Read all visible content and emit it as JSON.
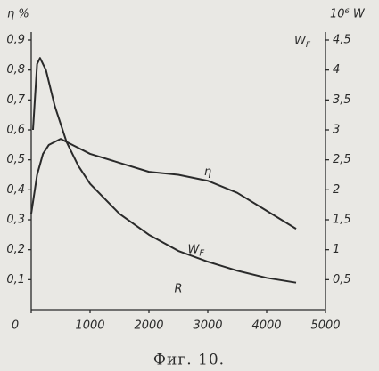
{
  "chart_data": {
    "type": "line",
    "caption": "Фиг. 10.",
    "y_label": "η %",
    "y2_label": "10⁶ W",
    "y2_series_label": {
      "text": "W",
      "sub": "F"
    },
    "xlim": [
      0,
      5000
    ],
    "xticks": [
      0,
      1000,
      2000,
      3000,
      4000,
      5000
    ],
    "ylim": [
      0,
      0.9
    ],
    "yticks": [
      {
        "value": 0.1,
        "label": "0,1"
      },
      {
        "value": 0.2,
        "label": "0,2"
      },
      {
        "value": 0.3,
        "label": "0,3"
      },
      {
        "value": 0.4,
        "label": "0,4"
      },
      {
        "value": 0.5,
        "label": "0,5"
      },
      {
        "value": 0.6,
        "label": "0,6"
      },
      {
        "value": 0.7,
        "label": "0,7"
      },
      {
        "value": 0.8,
        "label": "0,8"
      },
      {
        "value": 0.9,
        "label": "0,9"
      }
    ],
    "y2lim": [
      0,
      4.5
    ],
    "y2ticks": [
      {
        "value": 0.5,
        "label": "0,5"
      },
      1,
      {
        "value": 1.5,
        "label": "1,5"
      },
      2,
      {
        "value": 2.5,
        "label": "2,5"
      },
      3,
      {
        "value": 3.5,
        "label": "3,5"
      },
      4,
      {
        "value": 4.5,
        "label": "4,5"
      }
    ],
    "series": [
      {
        "name": "η",
        "color": "#2a2a2a",
        "x": [
          0,
          100,
          200,
          300,
          500,
          700,
          1000,
          1500,
          2000,
          2500,
          3000,
          3500,
          4000,
          4500
        ],
        "values": [
          0.32,
          0.45,
          0.52,
          0.55,
          0.57,
          0.55,
          0.52,
          0.49,
          0.46,
          0.45,
          0.43,
          0.39,
          0.33,
          0.27
        ]
      },
      {
        "name": "W_F",
        "color": "#2a2a2a",
        "axis": "y2",
        "x": [
          30,
          100,
          150,
          250,
          400,
          600,
          800,
          1000,
          1500,
          2000,
          2500,
          3000,
          3500,
          4000,
          4500
        ],
        "values": [
          3.0,
          4.1,
          4.2,
          4.0,
          3.4,
          2.8,
          2.4,
          2.1,
          1.6,
          1.25,
          0.98,
          0.8,
          0.65,
          0.53,
          0.45
        ]
      }
    ],
    "annotations": [
      {
        "text": "η",
        "x": 3000,
        "y": 0.46
      },
      {
        "text": "W",
        "sub": "F",
        "x": 2800,
        "y": 0.2
      },
      {
        "text": "R",
        "x": 2500,
        "y": 0.07
      }
    ]
  }
}
